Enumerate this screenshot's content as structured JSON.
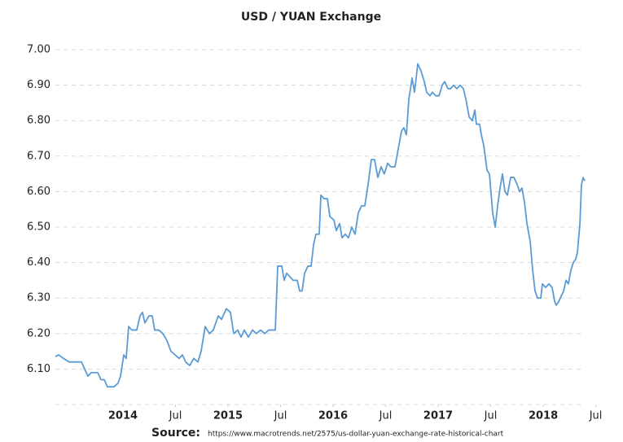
{
  "chart_data": {
    "type": "line",
    "title": "USD / YUAN Exchange",
    "source_label": "Source:",
    "source_url": "https://www.macrotrends.net/2575/us-dollar-yuan-exchange-rate-historical-chart",
    "xlim": [
      2013.357,
      2018.395
    ],
    "xticks": [
      {
        "value": 2014,
        "label": "2014"
      },
      {
        "value": 2014.5,
        "label": "Jul"
      },
      {
        "value": 2015,
        "label": "2015"
      },
      {
        "value": 2015.5,
        "label": "Jul"
      },
      {
        "value": 2016,
        "label": "2016"
      },
      {
        "value": 2016.5,
        "label": "Jul"
      },
      {
        "value": 2017,
        "label": "2017"
      },
      {
        "value": 2017.5,
        "label": "Jul"
      },
      {
        "value": 2018,
        "label": "2018"
      },
      {
        "value": 2018.5,
        "label": "Jul"
      }
    ],
    "ylim": [
      6.0,
      7.0
    ],
    "yticks": [
      {
        "value": 6.1,
        "label": "6.10"
      },
      {
        "value": 6.2,
        "label": "6.20"
      },
      {
        "value": 6.3,
        "label": "6.30"
      },
      {
        "value": 6.4,
        "label": "6.40"
      },
      {
        "value": 6.5,
        "label": "6.50"
      },
      {
        "value": 6.6,
        "label": "6.60"
      },
      {
        "value": 6.7,
        "label": "6.70"
      },
      {
        "value": 6.8,
        "label": "6.80"
      },
      {
        "value": 6.9,
        "label": "6.90"
      },
      {
        "value": 7.0,
        "label": "7.00"
      }
    ],
    "grid": true,
    "color": "#5b9bd5",
    "x": [
      2013.357,
      2013.388,
      2013.434,
      2013.488,
      2013.605,
      2013.636,
      2013.667,
      2013.698,
      2013.76,
      2013.791,
      2013.822,
      2013.853,
      2013.915,
      2013.953,
      2013.977,
      2014.008,
      2014.031,
      2014.054,
      2014.085,
      2014.132,
      2014.163,
      2014.186,
      2014.209,
      2014.248,
      2014.279,
      2014.302,
      2014.341,
      2014.38,
      2014.419,
      2014.457,
      2014.496,
      2014.535,
      2014.566,
      2014.597,
      2014.636,
      2014.674,
      2014.713,
      2014.744,
      2014.783,
      2014.822,
      2014.86,
      2014.907,
      2014.938,
      2014.984,
      2015.023,
      2015.054,
      2015.093,
      2015.124,
      2015.155,
      2015.194,
      2015.233,
      2015.271,
      2015.31,
      2015.349,
      2015.388,
      2015.45,
      2015.473,
      2015.512,
      2015.535,
      2015.558,
      2015.589,
      2015.62,
      2015.659,
      2015.682,
      2015.705,
      2015.729,
      2015.76,
      2015.791,
      2015.814,
      2015.837,
      2015.868,
      2015.884,
      2015.915,
      2015.946,
      2015.969,
      2016.008,
      2016.031,
      2016.062,
      2016.085,
      2016.116,
      2016.147,
      2016.178,
      2016.209,
      2016.24,
      2016.271,
      2016.302,
      2016.333,
      2016.364,
      2016.395,
      2016.426,
      2016.457,
      2016.488,
      2016.519,
      2016.55,
      2016.589,
      2016.62,
      2016.651,
      2016.674,
      2016.698,
      2016.721,
      2016.752,
      2016.775,
      2016.806,
      2016.837,
      2016.868,
      2016.891,
      2016.922,
      2016.946,
      2016.977,
      2017.008,
      2017.039,
      2017.062,
      2017.093,
      2017.116,
      2017.147,
      2017.178,
      2017.209,
      2017.24,
      2017.264,
      2017.295,
      2017.326,
      2017.349,
      2017.364,
      2017.395,
      2017.411,
      2017.434,
      2017.465,
      2017.488,
      2017.519,
      2017.543,
      2017.566,
      2017.589,
      2017.612,
      2017.636,
      2017.659,
      2017.69,
      2017.721,
      2017.752,
      2017.775,
      2017.798,
      2017.822,
      2017.845,
      2017.876,
      2017.899,
      2017.922,
      2017.946,
      2017.977,
      2017.992,
      2018.023,
      2018.054,
      2018.085,
      2018.109,
      2018.124,
      2018.147,
      2018.178,
      2018.194,
      2018.217,
      2018.24,
      2018.264,
      2018.287,
      2018.31,
      2018.326,
      2018.349,
      2018.364,
      2018.38,
      2018.395
    ],
    "values": [
      6.135,
      6.14,
      6.13,
      6.12,
      6.12,
      6.1,
      6.08,
      6.09,
      6.09,
      6.07,
      6.07,
      6.05,
      6.05,
      6.06,
      6.08,
      6.14,
      6.13,
      6.22,
      6.21,
      6.21,
      6.25,
      6.26,
      6.23,
      6.25,
      6.25,
      6.21,
      6.21,
      6.2,
      6.18,
      6.15,
      6.14,
      6.13,
      6.14,
      6.12,
      6.11,
      6.13,
      6.12,
      6.15,
      6.22,
      6.2,
      6.21,
      6.25,
      6.24,
      6.27,
      6.26,
      6.2,
      6.21,
      6.19,
      6.21,
      6.19,
      6.21,
      6.2,
      6.21,
      6.2,
      6.21,
      6.21,
      6.39,
      6.39,
      6.35,
      6.37,
      6.36,
      6.35,
      6.35,
      6.32,
      6.32,
      6.37,
      6.39,
      6.39,
      6.45,
      6.48,
      6.48,
      6.59,
      6.58,
      6.58,
      6.53,
      6.52,
      6.49,
      6.51,
      6.47,
      6.48,
      6.47,
      6.5,
      6.48,
      6.54,
      6.56,
      6.56,
      6.62,
      6.69,
      6.69,
      6.64,
      6.67,
      6.65,
      6.68,
      6.67,
      6.67,
      6.72,
      6.77,
      6.78,
      6.76,
      6.86,
      6.92,
      6.88,
      6.96,
      6.94,
      6.91,
      6.88,
      6.87,
      6.88,
      6.87,
      6.87,
      6.9,
      6.91,
      6.89,
      6.89,
      6.9,
      6.89,
      6.9,
      6.89,
      6.86,
      6.81,
      6.8,
      6.83,
      6.79,
      6.79,
      6.76,
      6.73,
      6.66,
      6.65,
      6.54,
      6.5,
      6.56,
      6.61,
      6.65,
      6.6,
      6.59,
      6.64,
      6.64,
      6.62,
      6.6,
      6.61,
      6.57,
      6.51,
      6.46,
      6.38,
      6.32,
      6.3,
      6.3,
      6.34,
      6.33,
      6.34,
      6.33,
      6.29,
      6.28,
      6.29,
      6.31,
      6.32,
      6.35,
      6.34,
      6.38,
      6.4,
      6.41,
      6.43,
      6.51,
      6.62,
      6.64,
      6.63
    ]
  }
}
